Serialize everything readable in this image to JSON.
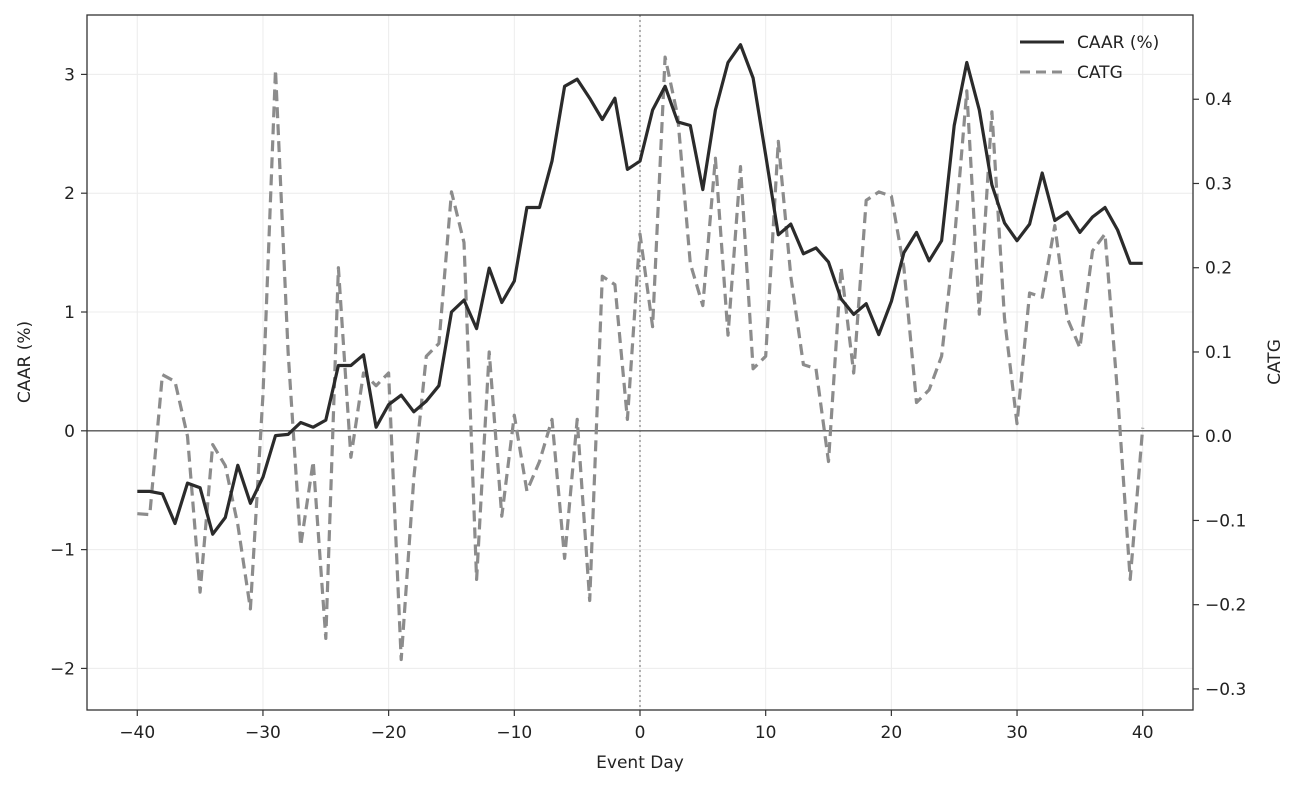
{
  "chart_data": {
    "type": "line",
    "title": "",
    "xlabel": "Event Day",
    "ylabel": "CAAR (%)",
    "y2label": "CATG",
    "xlim": [
      -44,
      44
    ],
    "ylim": [
      -2.35,
      3.5
    ],
    "y2lim": [
      -0.325,
      0.5
    ],
    "xticks": [
      -40,
      -30,
      -20,
      -10,
      0,
      10,
      20,
      30,
      40
    ],
    "yticks": [
      -2,
      -1,
      0,
      1,
      2,
      3
    ],
    "y2ticks": [
      -0.3,
      -0.2,
      -0.1,
      0.0,
      0.1,
      0.2,
      0.3,
      0.4
    ],
    "xtick_labels": [
      "−40",
      "−30",
      "−20",
      "−10",
      "0",
      "10",
      "20",
      "30",
      "40"
    ],
    "ytick_labels": [
      "−2",
      "−1",
      "0",
      "1",
      "2",
      "3"
    ],
    "y2tick_labels": [
      "−0.3",
      "−0.2",
      "−0.1",
      "0.0",
      "0.1",
      "0.2",
      "0.3",
      "0.4"
    ],
    "grid": true,
    "zero_line": true,
    "event_line_x": 0,
    "legend_position": "top-right",
    "x": [
      -40,
      -39,
      -38,
      -37,
      -36,
      -35,
      -34,
      -33,
      -32,
      -31,
      -30,
      -29,
      -28,
      -27,
      -26,
      -25,
      -24,
      -23,
      -22,
      -21,
      -20,
      -19,
      -18,
      -17,
      -16,
      -15,
      -14,
      -13,
      -12,
      -11,
      -10,
      -9,
      -8,
      -7,
      -6,
      -5,
      -4,
      -3,
      -2,
      -1,
      0,
      1,
      2,
      3,
      4,
      5,
      6,
      7,
      8,
      9,
      10,
      11,
      12,
      13,
      14,
      15,
      16,
      17,
      18,
      19,
      20,
      21,
      22,
      23,
      24,
      25,
      26,
      27,
      28,
      29,
      30,
      31,
      32,
      33,
      34,
      35,
      36,
      37,
      38,
      39,
      40
    ],
    "series": [
      {
        "name": "CAAR (%)",
        "axis": "left",
        "color": "#2b2b2b",
        "dash": "solid",
        "values": [
          -0.51,
          -0.51,
          -0.53,
          -0.78,
          -0.44,
          -0.48,
          -0.87,
          -0.73,
          -0.29,
          -0.61,
          -0.39,
          -0.04,
          -0.03,
          0.07,
          0.03,
          0.09,
          0.55,
          0.55,
          0.64,
          0.03,
          0.22,
          0.3,
          0.16,
          0.25,
          0.38,
          1.0,
          1.1,
          0.86,
          1.37,
          1.08,
          1.26,
          1.88,
          1.88,
          2.27,
          2.9,
          2.96,
          2.8,
          2.62,
          2.8,
          2.2,
          2.27,
          2.7,
          2.9,
          2.6,
          2.57,
          2.03,
          2.7,
          3.1,
          3.25,
          2.97,
          2.32,
          1.65,
          1.74,
          1.49,
          1.54,
          1.42,
          1.11,
          0.98,
          1.07,
          0.81,
          1.09,
          1.5,
          1.67,
          1.43,
          1.6,
          2.57,
          3.1,
          2.7,
          2.07,
          1.75,
          1.6,
          1.74,
          2.17,
          1.77,
          1.84,
          1.67,
          1.8,
          1.88,
          1.69,
          1.41,
          1.41
        ]
      },
      {
        "name": "CATG",
        "axis": "right",
        "color": "#8c8c8c",
        "dash": "dashed",
        "values": [
          -0.092,
          -0.093,
          0.073,
          0.065,
          0.0,
          -0.185,
          -0.01,
          -0.035,
          -0.105,
          -0.205,
          0.05,
          0.435,
          0.1,
          -0.13,
          -0.03,
          -0.24,
          0.2,
          -0.025,
          0.075,
          0.06,
          0.075,
          -0.265,
          -0.05,
          0.095,
          0.11,
          0.29,
          0.23,
          -0.17,
          0.1,
          -0.095,
          0.025,
          -0.065,
          -0.03,
          0.02,
          -0.145,
          0.02,
          -0.195,
          0.19,
          0.18,
          0.02,
          0.24,
          0.13,
          0.45,
          0.38,
          0.205,
          0.155,
          0.33,
          0.12,
          0.32,
          0.08,
          0.095,
          0.35,
          0.19,
          0.085,
          0.08,
          -0.03,
          0.2,
          0.075,
          0.28,
          0.29,
          0.285,
          0.2,
          0.04,
          0.055,
          0.095,
          0.23,
          0.41,
          0.145,
          0.385,
          0.14,
          0.015,
          0.17,
          0.165,
          0.25,
          0.14,
          0.105,
          0.22,
          0.24,
          0.05,
          -0.17,
          0.01
        ]
      }
    ]
  }
}
